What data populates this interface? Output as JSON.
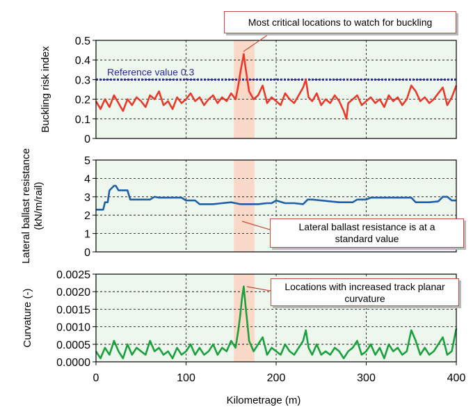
{
  "chart_data": [
    {
      "type": "line",
      "ylabel": "Buckling risk index",
      "ylim": [
        0,
        0.5
      ],
      "yticks": [
        "0",
        "0.1",
        "0.2",
        "0.3",
        "0.4",
        "0.5"
      ],
      "xlim": [
        0,
        400
      ],
      "reference": {
        "value": 0.3,
        "label": "Reference value 0.3",
        "color": "#2b2b9a"
      },
      "series": [
        {
          "name": "Buckling risk index",
          "color": "#e8392a",
          "x": [
            0,
            5,
            10,
            15,
            20,
            25,
            30,
            35,
            40,
            45,
            50,
            55,
            60,
            65,
            70,
            75,
            80,
            85,
            90,
            95,
            100,
            105,
            110,
            115,
            120,
            125,
            130,
            135,
            140,
            145,
            150,
            155,
            158,
            160,
            162,
            164,
            166,
            168,
            170,
            175,
            180,
            185,
            190,
            195,
            200,
            205,
            210,
            215,
            220,
            225,
            230,
            233,
            236,
            240,
            245,
            250,
            255,
            260,
            265,
            270,
            275,
            278,
            280,
            285,
            290,
            295,
            300,
            305,
            310,
            315,
            320,
            325,
            330,
            335,
            340,
            345,
            350,
            355,
            360,
            365,
            370,
            375,
            380,
            385,
            390,
            395,
            400
          ],
          "y": [
            0.19,
            0.15,
            0.2,
            0.16,
            0.22,
            0.18,
            0.14,
            0.2,
            0.17,
            0.21,
            0.19,
            0.16,
            0.22,
            0.2,
            0.24,
            0.17,
            0.19,
            0.15,
            0.21,
            0.18,
            0.2,
            0.23,
            0.19,
            0.21,
            0.17,
            0.2,
            0.22,
            0.18,
            0.21,
            0.19,
            0.23,
            0.2,
            0.27,
            0.33,
            0.38,
            0.43,
            0.36,
            0.3,
            0.24,
            0.2,
            0.22,
            0.27,
            0.18,
            0.21,
            0.19,
            0.17,
            0.23,
            0.2,
            0.18,
            0.22,
            0.26,
            0.3,
            0.21,
            0.19,
            0.23,
            0.17,
            0.2,
            0.18,
            0.22,
            0.19,
            0.14,
            0.1,
            0.18,
            0.2,
            0.22,
            0.17,
            0.19,
            0.21,
            0.18,
            0.2,
            0.16,
            0.22,
            0.19,
            0.21,
            0.17,
            0.2,
            0.27,
            0.24,
            0.19,
            0.21,
            0.18,
            0.2,
            0.23,
            0.26,
            0.17,
            0.21,
            0.27
          ]
        }
      ],
      "highlight_x": [
        153,
        176
      ],
      "callout": "Most critical locations to watch for buckling"
    },
    {
      "type": "line",
      "ylabel": "Lateral ballast resistance (kN/m/rail)",
      "ylabel_lines": [
        "Lateral ballast resistance",
        "(kN/m/rail)"
      ],
      "ylim": [
        0,
        5
      ],
      "yticks": [
        "0",
        "1",
        "2",
        "3",
        "4",
        "5"
      ],
      "xlim": [
        0,
        400
      ],
      "series": [
        {
          "name": "Lateral ballast resistance",
          "color": "#1f5fa8",
          "x": [
            0,
            8,
            10,
            13,
            15,
            20,
            22,
            25,
            30,
            35,
            38,
            40,
            50,
            60,
            65,
            70,
            80,
            90,
            95,
            100,
            110,
            115,
            120,
            130,
            140,
            150,
            160,
            170,
            180,
            190,
            195,
            200,
            210,
            215,
            220,
            230,
            235,
            240,
            250,
            260,
            270,
            280,
            285,
            290,
            300,
            305,
            310,
            320,
            330,
            340,
            350,
            355,
            360,
            370,
            380,
            385,
            390,
            395,
            400
          ],
          "y": [
            2.3,
            2.3,
            2.7,
            2.7,
            3.35,
            3.6,
            3.6,
            3.35,
            3.35,
            3.35,
            2.85,
            2.85,
            2.85,
            2.85,
            3.0,
            2.95,
            2.95,
            2.95,
            2.95,
            2.8,
            2.8,
            2.6,
            2.6,
            2.6,
            2.65,
            2.7,
            2.6,
            2.6,
            2.6,
            2.65,
            2.65,
            2.8,
            2.65,
            2.65,
            2.65,
            2.6,
            2.85,
            2.85,
            2.8,
            2.75,
            2.7,
            2.7,
            2.7,
            2.85,
            2.85,
            2.95,
            2.95,
            2.95,
            2.95,
            2.95,
            2.95,
            2.7,
            2.7,
            2.7,
            2.75,
            3.0,
            3.0,
            2.8,
            2.8
          ]
        }
      ],
      "highlight_x": [
        153,
        176
      ],
      "callout_lines": [
        "Lateral ballast resistance is at a",
        "standard value"
      ]
    },
    {
      "type": "line",
      "ylabel": "Curvature (-)",
      "ylim": [
        0,
        0.0025
      ],
      "yticks": [
        "0.0000",
        "0.0005",
        "0.0010",
        "0.0015",
        "0.0020",
        "0.0025"
      ],
      "xlim": [
        0,
        400
      ],
      "xticks": [
        "0",
        "100",
        "200",
        "300",
        "400"
      ],
      "xlabel": "Kilometrage (m)",
      "series": [
        {
          "name": "Curvature",
          "color": "#1aa03c",
          "x": [
            0,
            5,
            10,
            15,
            20,
            25,
            30,
            35,
            40,
            45,
            50,
            55,
            60,
            65,
            70,
            75,
            80,
            85,
            90,
            95,
            100,
            105,
            110,
            115,
            120,
            125,
            130,
            135,
            140,
            145,
            150,
            155,
            158,
            160,
            162,
            164,
            166,
            168,
            170,
            175,
            180,
            185,
            190,
            195,
            200,
            205,
            210,
            215,
            220,
            225,
            230,
            233,
            236,
            240,
            245,
            250,
            255,
            260,
            265,
            270,
            275,
            280,
            285,
            290,
            295,
            300,
            305,
            310,
            315,
            320,
            325,
            330,
            335,
            340,
            345,
            350,
            355,
            360,
            365,
            370,
            375,
            380,
            385,
            390,
            395,
            400
          ],
          "y": [
            0.0003,
            0.0001,
            0.0004,
            0.0002,
            0.0006,
            0.0003,
            0.0001,
            0.0005,
            0.0002,
            0.0004,
            0.0003,
            0.0002,
            0.0006,
            0.0003,
            0.0004,
            0.0002,
            0.0003,
            0.0001,
            0.0004,
            0.0002,
            0.0003,
            0.0005,
            0.0002,
            0.0004,
            0.0002,
            0.0003,
            0.0005,
            0.0002,
            0.0004,
            0.0003,
            0.0006,
            0.0004,
            0.0009,
            0.0013,
            0.0018,
            0.00215,
            0.0016,
            0.0011,
            0.0006,
            0.0003,
            0.0005,
            0.0007,
            0.0002,
            0.0004,
            0.0003,
            0.0002,
            0.0005,
            0.0003,
            0.0002,
            0.0004,
            0.0006,
            0.0009,
            0.0004,
            0.0002,
            0.0005,
            0.0002,
            0.0003,
            0.0002,
            0.0004,
            0.0003,
            0.0001,
            0.0003,
            0.0004,
            0.0006,
            0.0002,
            0.0003,
            0.0005,
            0.0002,
            0.0004,
            0.0001,
            0.0005,
            0.0003,
            0.0004,
            0.0002,
            0.0003,
            0.0009,
            0.0006,
            0.0002,
            0.0004,
            0.0002,
            0.0003,
            0.0005,
            0.0007,
            0.0002,
            0.0003,
            0.00095
          ]
        }
      ],
      "highlight_x": [
        153,
        176
      ],
      "callout_lines": [
        "Locations with increased track planar",
        "curvature"
      ]
    }
  ],
  "colors": {
    "plot_bg": "#eef7ee",
    "highlight": "#fbd9c9",
    "grid": "#000000",
    "callout_border": "#c84a3a"
  }
}
